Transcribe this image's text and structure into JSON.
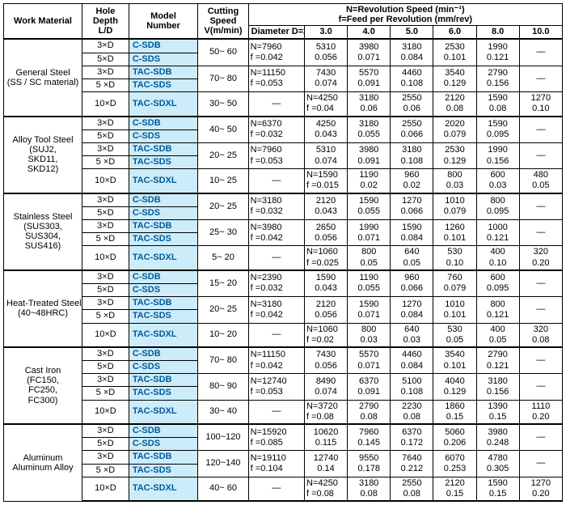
{
  "headers": {
    "work_material": "Work Material",
    "hole_depth": "Hole\nDepth\nL/D",
    "model_number": "Model\nNumber",
    "cutting_speed": "Cutting\nSpeed\nV(m/min)",
    "rev_feed_caption": "N=Revolution Speed (min⁻¹)\nf=Feed per Revolution (mm/rev)",
    "diameter_d2": "Diameter D=2",
    "diam_cols": [
      "3.0",
      "4.0",
      "5.0",
      "6.0",
      "8.0",
      "10.0"
    ]
  },
  "depth_labels": {
    "d3": "3×D",
    "d5": "5×D",
    "d10": "10×D"
  },
  "model_labels": {
    "csdb": "C-SDB",
    "csds": "C-SDS",
    "tacsdb": "TAC-SDB",
    "tacsds": "TAC-SDS",
    "tacsdxl": "TAC-SDXL"
  },
  "materials": [
    "General Steel\n(SS / SC material)",
    "Alloy Tool Steel\n(SUJ2,\nSKD11,\nSKD12)",
    "Stainless Steel\n(SUS303,\nSUS304,\nSUS416)",
    "Heat-Treated Steel\n(40~48HRC)",
    "Cast Iron\n(FC150,\nFC250,\nFC300)",
    "Aluminum\nAluminum Alloy"
  ],
  "sections": [
    [
      {
        "cut": "50~ 60",
        "d2": [
          "N=7960",
          "f =0.042"
        ],
        "v": [
          [
            "5310",
            "0.056"
          ],
          [
            "3980",
            "0.071"
          ],
          [
            "3180",
            "0.084"
          ],
          [
            "2530",
            "0.101"
          ],
          [
            "1990",
            "0.121"
          ],
          [
            "—",
            ""
          ]
        ]
      },
      {
        "cut": "70~ 80",
        "d2": [
          "N=11150",
          "f =0.053"
        ],
        "v": [
          [
            "7430",
            "0.074"
          ],
          [
            "5570",
            "0.091"
          ],
          [
            "4460",
            "0.108"
          ],
          [
            "3540",
            "0.129"
          ],
          [
            "2790",
            "0.156"
          ],
          [
            "—",
            ""
          ]
        ]
      },
      {
        "cut": "30~ 50",
        "d2": [
          "—",
          ""
        ],
        "v": [
          [
            "N=4250",
            "f =0.04"
          ],
          [
            "3180",
            "0.06"
          ],
          [
            "2550",
            "0.06"
          ],
          [
            "2120",
            "0.08"
          ],
          [
            "1590",
            "0.08"
          ],
          [
            "1270",
            "0.10"
          ]
        ]
      }
    ],
    [
      {
        "cut": "40~ 50",
        "d2": [
          "N=6370",
          "f =0.032"
        ],
        "v": [
          [
            "4250",
            "0.043"
          ],
          [
            "3180",
            "0.055"
          ],
          [
            "2550",
            "0.066"
          ],
          [
            "2020",
            "0.079"
          ],
          [
            "1590",
            "0.095"
          ],
          [
            "—",
            ""
          ]
        ]
      },
      {
        "cut": "20~ 25",
        "d2": [
          "N=7960",
          "f =0.053"
        ],
        "v": [
          [
            "5310",
            "0.074"
          ],
          [
            "3980",
            "0.091"
          ],
          [
            "3180",
            "0.108"
          ],
          [
            "2530",
            "0.129"
          ],
          [
            "1990",
            "0.156"
          ],
          [
            "—",
            ""
          ]
        ]
      },
      {
        "cut": "10~ 25",
        "d2": [
          "—",
          ""
        ],
        "v": [
          [
            "N=1590",
            "f =0.015"
          ],
          [
            "1190",
            "0.02"
          ],
          [
            "960",
            "0.02"
          ],
          [
            "800",
            "0.03"
          ],
          [
            "600",
            "0.03"
          ],
          [
            "480",
            "0.05"
          ]
        ]
      }
    ],
    [
      {
        "cut": "20~ 25",
        "d2": [
          "N=3180",
          "f =0.032"
        ],
        "v": [
          [
            "2120",
            "0.043"
          ],
          [
            "1590",
            "0.055"
          ],
          [
            "1270",
            "0.066"
          ],
          [
            "1010",
            "0.079"
          ],
          [
            "800",
            "0.095"
          ],
          [
            "—",
            ""
          ]
        ]
      },
      {
        "cut": "25~ 30",
        "d2": [
          "N=3980",
          "f =0.042"
        ],
        "v": [
          [
            "2650",
            "0.056"
          ],
          [
            "1990",
            "0.071"
          ],
          [
            "1590",
            "0.084"
          ],
          [
            "1260",
            "0.101"
          ],
          [
            "1000",
            "0.121"
          ],
          [
            "—",
            ""
          ]
        ]
      },
      {
        "cut": "5~ 20",
        "d2": [
          "—",
          ""
        ],
        "v": [
          [
            "N=1060",
            "f =0.025"
          ],
          [
            "800",
            "0.05"
          ],
          [
            "640",
            "0.05"
          ],
          [
            "530",
            "0.10"
          ],
          [
            "400",
            "0.10"
          ],
          [
            "320",
            "0.20"
          ]
        ]
      }
    ],
    [
      {
        "cut": "15~ 20",
        "d2": [
          "N=2390",
          "f =0.032"
        ],
        "v": [
          [
            "1590",
            "0.043"
          ],
          [
            "1190",
            "0.055"
          ],
          [
            "960",
            "0.066"
          ],
          [
            "760",
            "0.079"
          ],
          [
            "600",
            "0.095"
          ],
          [
            "—",
            ""
          ]
        ]
      },
      {
        "cut": "20~ 25",
        "d2": [
          "N=3180",
          "f =0.042"
        ],
        "v": [
          [
            "2120",
            "0.056"
          ],
          [
            "1590",
            "0.071"
          ],
          [
            "1270",
            "0.084"
          ],
          [
            "1010",
            "0.101"
          ],
          [
            "800",
            "0.121"
          ],
          [
            "—",
            ""
          ]
        ]
      },
      {
        "cut": "10~ 20",
        "d2": [
          "—",
          ""
        ],
        "v": [
          [
            "N=1060",
            "f =0.02"
          ],
          [
            "800",
            "0.03"
          ],
          [
            "640",
            "0.03"
          ],
          [
            "530",
            "0.05"
          ],
          [
            "400",
            "0.05"
          ],
          [
            "320",
            "0.08"
          ]
        ]
      }
    ],
    [
      {
        "cut": "70~ 80",
        "d2": [
          "N=11150",
          "f =0.042"
        ],
        "v": [
          [
            "7430",
            "0.056"
          ],
          [
            "5570",
            "0.071"
          ],
          [
            "4460",
            "0.084"
          ],
          [
            "3540",
            "0.101"
          ],
          [
            "2790",
            "0.121"
          ],
          [
            "—",
            ""
          ]
        ]
      },
      {
        "cut": "80~ 90",
        "d2": [
          "N=12740",
          "f =0.053"
        ],
        "v": [
          [
            "8490",
            "0.074"
          ],
          [
            "6370",
            "0.091"
          ],
          [
            "5100",
            "0.108"
          ],
          [
            "4040",
            "0.129"
          ],
          [
            "3180",
            "0.156"
          ],
          [
            "—",
            ""
          ]
        ]
      },
      {
        "cut": "30~ 40",
        "d2": [
          "—",
          ""
        ],
        "v": [
          [
            "N=3720",
            "f =0.08"
          ],
          [
            "2790",
            "0.08"
          ],
          [
            "2230",
            "0.08"
          ],
          [
            "1860",
            "0.15"
          ],
          [
            "1390",
            "0.15"
          ],
          [
            "1110",
            "0.20"
          ]
        ]
      }
    ],
    [
      {
        "cut": "100~120",
        "d2": [
          "N=15920",
          "f =0.085"
        ],
        "v": [
          [
            "10620",
            "0.115"
          ],
          [
            "7960",
            "0.145"
          ],
          [
            "6370",
            "0.172"
          ],
          [
            "5060",
            "0.206"
          ],
          [
            "3980",
            "0.248"
          ],
          [
            "—",
            ""
          ]
        ]
      },
      {
        "cut": "120~140",
        "d2": [
          "N=19110",
          "f =0.104"
        ],
        "v": [
          [
            "12740",
            "0.14"
          ],
          [
            "9550",
            "0.178"
          ],
          [
            "7640",
            "0.212"
          ],
          [
            "6070",
            "0.253"
          ],
          [
            "4780",
            "0.305"
          ],
          [
            "—",
            ""
          ]
        ]
      },
      {
        "cut": "40~ 60",
        "d2": [
          "—",
          ""
        ],
        "v": [
          [
            "N=4250",
            "f =0.08"
          ],
          [
            "3180",
            "0.08"
          ],
          [
            "2550",
            "0.08"
          ],
          [
            "2120",
            "0.15"
          ],
          [
            "1590",
            "0.15"
          ],
          [
            "1270",
            "0.20"
          ]
        ]
      }
    ]
  ]
}
